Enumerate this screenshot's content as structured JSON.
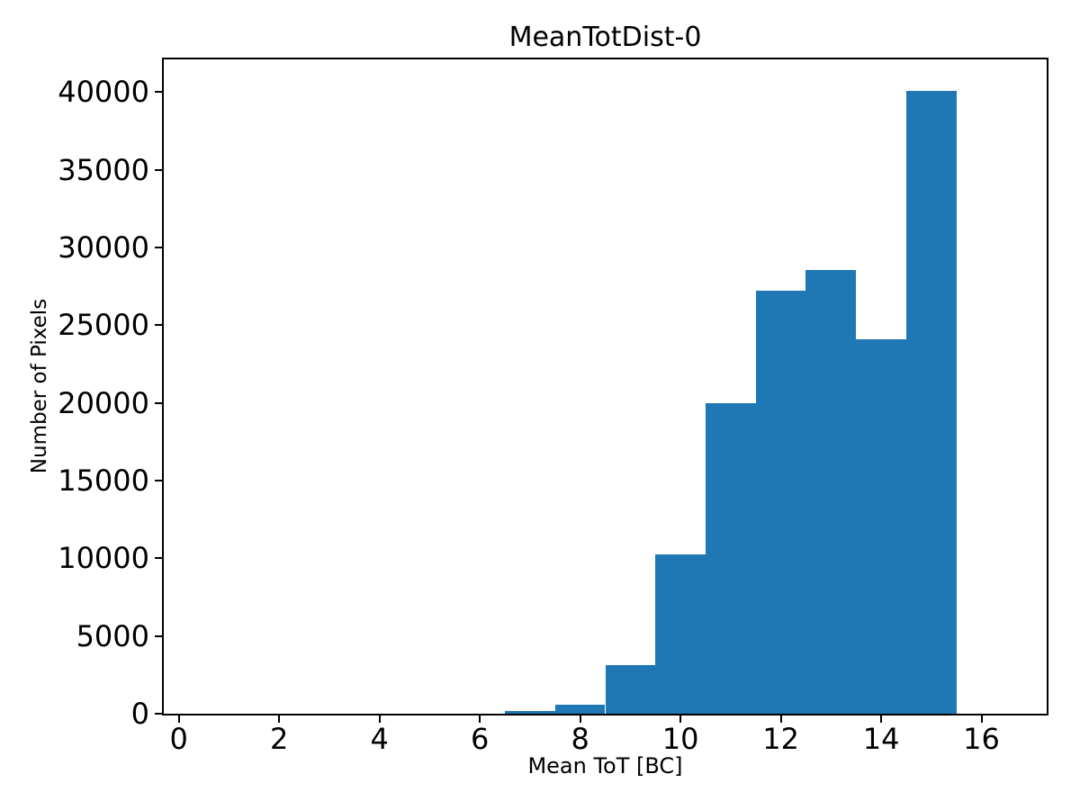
{
  "chart_data": {
    "type": "bar",
    "subtype": "histogram",
    "title": "MeanTotDist-0",
    "xlabel": "Mean ToT [BC]",
    "ylabel": "Number of Pixels",
    "bar_color": "#1f77b4",
    "text_color": "#000000",
    "background_color": "#ffffff",
    "grid": false,
    "legend": null,
    "xlim": [
      -0.3,
      17.3
    ],
    "ylim": [
      0,
      42100
    ],
    "xticks": [
      0,
      2,
      4,
      6,
      8,
      10,
      12,
      14,
      16
    ],
    "yticks": [
      0,
      5000,
      10000,
      15000,
      20000,
      25000,
      30000,
      35000,
      40000
    ],
    "bin_edges": [
      0.5,
      1.5,
      2.5,
      3.5,
      4.5,
      5.5,
      6.5,
      7.5,
      8.5,
      9.5,
      10.5,
      11.5,
      12.5,
      13.5,
      14.5,
      15.5,
      16.5
    ],
    "bin_centers": [
      1,
      2,
      3,
      4,
      5,
      6,
      7,
      8,
      9,
      10,
      11,
      12,
      13,
      14,
      15,
      16
    ],
    "counts": [
      0,
      0,
      0,
      0,
      0,
      0,
      200,
      580,
      3100,
      10250,
      20000,
      27200,
      28550,
      24100,
      40100,
      0
    ]
  }
}
